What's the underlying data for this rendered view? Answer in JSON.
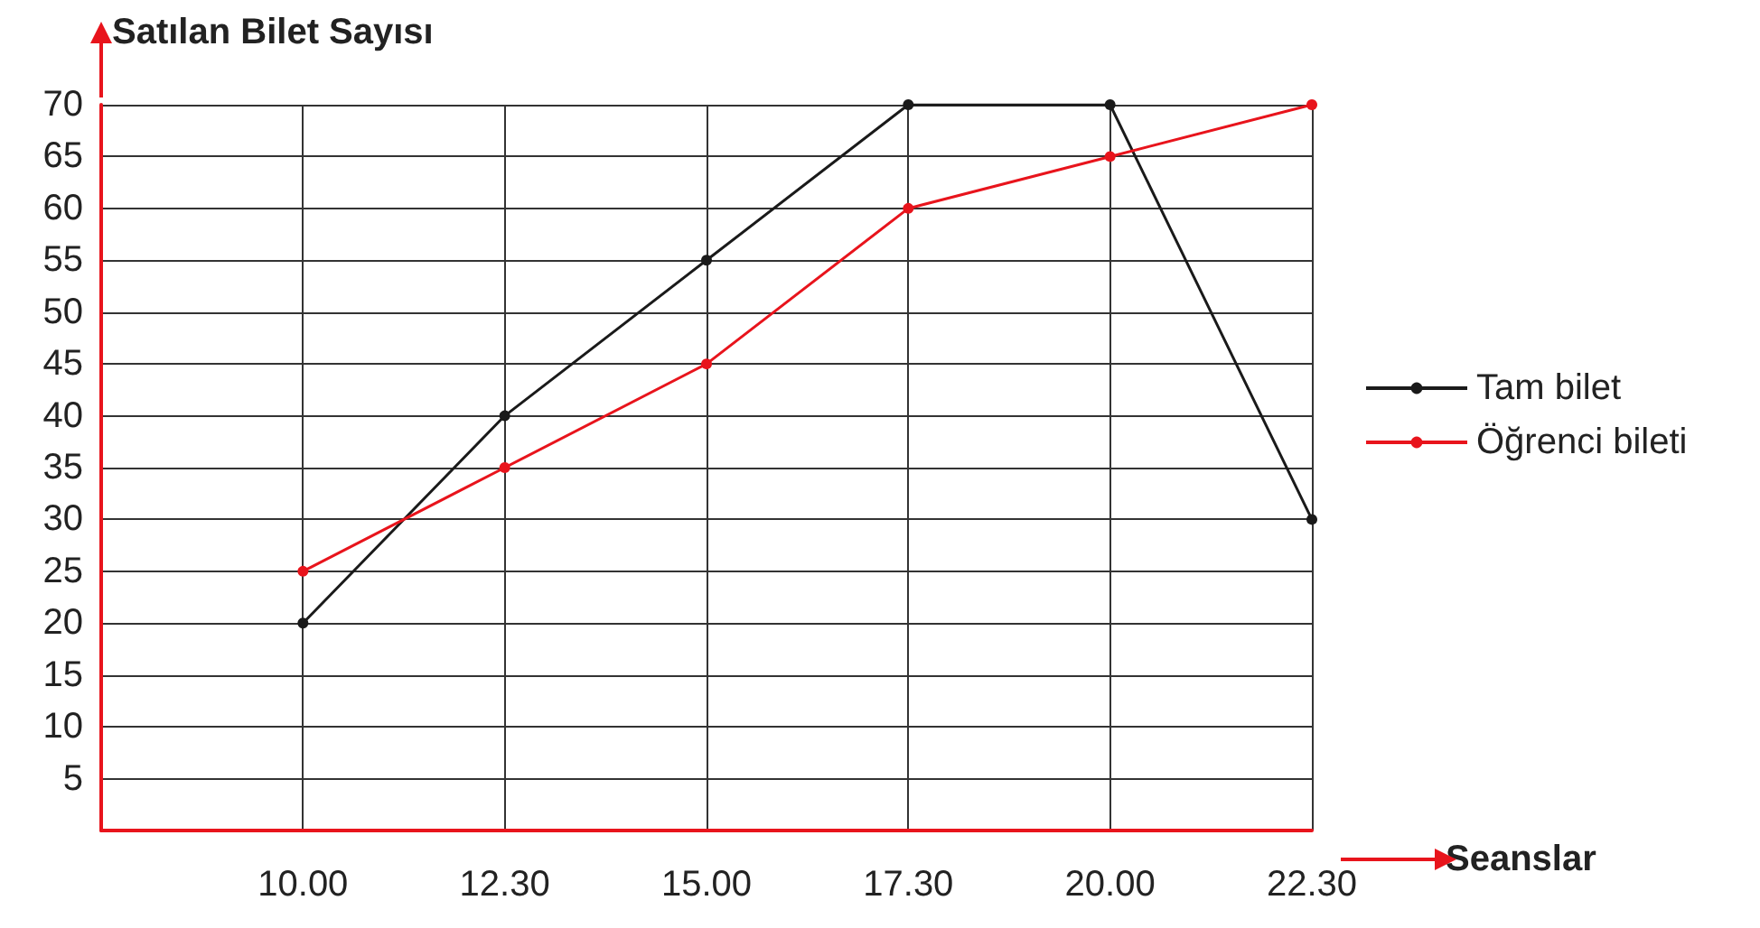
{
  "chart_data": {
    "type": "line",
    "xlabel": "Seanslar",
    "ylabel": "Satılan Bilet Sayısı",
    "categories": [
      "10.00",
      "12.30",
      "15.00",
      "17.30",
      "20.00",
      "22.30"
    ],
    "series": [
      {
        "name": "Tam bilet",
        "color": "#1a1a1a",
        "values": [
          20,
          40,
          55,
          70,
          70,
          30
        ]
      },
      {
        "name": "Öğrenci bileti",
        "color": "#e8141c",
        "values": [
          25,
          35,
          45,
          60,
          65,
          70
        ]
      }
    ],
    "ylim": [
      0,
      70
    ],
    "yticks": [
      5,
      10,
      15,
      20,
      25,
      30,
      35,
      40,
      45,
      50,
      55,
      60,
      65,
      70
    ],
    "grid": true,
    "legend": "right",
    "marker": "circle",
    "line_style": "solid"
  }
}
